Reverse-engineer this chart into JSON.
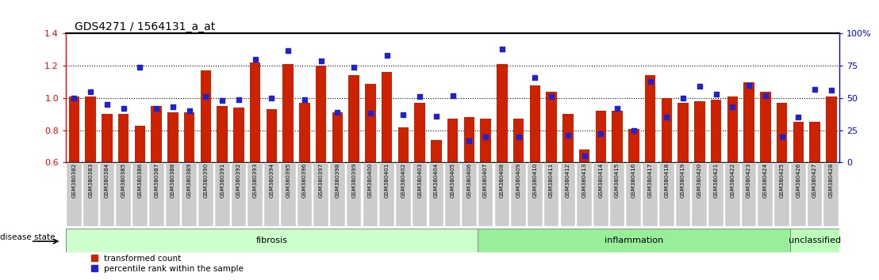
{
  "title": "GDS4271 / 1564131_a_at",
  "samples": [
    "GSM380382",
    "GSM380383",
    "GSM380384",
    "GSM380385",
    "GSM380386",
    "GSM380387",
    "GSM380388",
    "GSM380389",
    "GSM380390",
    "GSM380391",
    "GSM380392",
    "GSM380393",
    "GSM380394",
    "GSM380395",
    "GSM380396",
    "GSM380397",
    "GSM380398",
    "GSM380399",
    "GSM380400",
    "GSM380401",
    "GSM380402",
    "GSM380403",
    "GSM380404",
    "GSM380405",
    "GSM380406",
    "GSM380407",
    "GSM380408",
    "GSM380409",
    "GSM380410",
    "GSM380411",
    "GSM380412",
    "GSM380413",
    "GSM380414",
    "GSM380415",
    "GSM380416",
    "GSM380417",
    "GSM380418",
    "GSM380419",
    "GSM380420",
    "GSM380421",
    "GSM380422",
    "GSM380423",
    "GSM380424",
    "GSM380425",
    "GSM380426",
    "GSM380427",
    "GSM380428"
  ],
  "red_values": [
    1.01,
    1.01,
    0.9,
    0.9,
    0.83,
    0.95,
    0.91,
    0.91,
    1.17,
    0.95,
    0.94,
    1.22,
    0.93,
    1.21,
    0.97,
    1.2,
    0.91,
    1.14,
    1.09,
    1.16,
    0.82,
    0.97,
    0.74,
    0.87,
    0.88,
    0.87,
    1.21,
    0.87,
    1.08,
    1.04,
    0.9,
    0.68,
    0.92,
    0.92,
    0.81,
    1.14,
    1.0,
    0.97,
    0.98,
    0.99,
    1.01,
    1.1,
    1.04,
    0.97,
    0.85,
    0.85,
    1.01
  ],
  "blue_values": [
    50,
    55,
    45,
    42,
    74,
    42,
    43,
    40,
    51,
    48,
    49,
    80,
    50,
    87,
    49,
    79,
    39,
    74,
    38,
    83,
    37,
    51,
    36,
    52,
    17,
    20,
    88,
    20,
    66,
    51,
    21,
    5,
    22,
    42,
    25,
    63,
    35,
    50,
    59,
    53,
    43,
    60,
    52,
    20,
    35,
    57,
    56
  ],
  "groups": [
    {
      "label": "fibrosis",
      "start": 0,
      "end": 24,
      "color": "#ccffcc"
    },
    {
      "label": "inflammation",
      "start": 25,
      "end": 43,
      "color": "#99ee99"
    },
    {
      "label": "unclassified",
      "start": 44,
      "end": 46,
      "color": "#bbffbb"
    }
  ],
  "ylim_left": [
    0.6,
    1.4
  ],
  "ylim_right": [
    0,
    100
  ],
  "bar_color": "#cc2200",
  "dot_color": "#2222cc",
  "plot_bg": "#ffffff",
  "yticks_left": [
    0.6,
    0.8,
    1.0,
    1.2,
    1.4
  ],
  "yticks_right": [
    0,
    25,
    50,
    75,
    100
  ],
  "hlines": [
    0.8,
    1.0,
    1.2
  ],
  "tick_label_bg": "#cccccc",
  "group_border_color": "#888888"
}
